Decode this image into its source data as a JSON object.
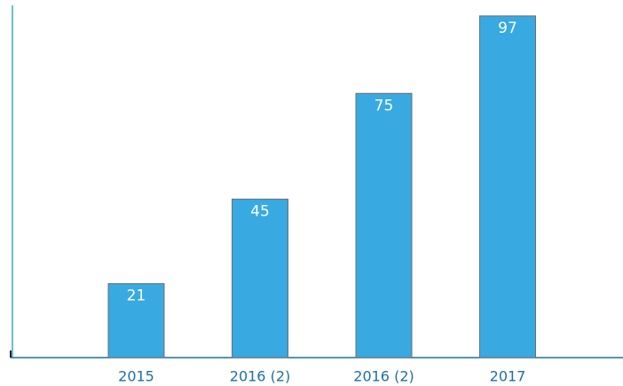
{
  "chart_data": {
    "type": "bar",
    "categories": [
      "2015",
      "2016 (2)",
      "2016 (2)",
      "2017"
    ],
    "values": [
      21,
      45,
      75,
      97
    ],
    "color": "#38a9e1",
    "ylim": [
      0,
      100
    ]
  }
}
